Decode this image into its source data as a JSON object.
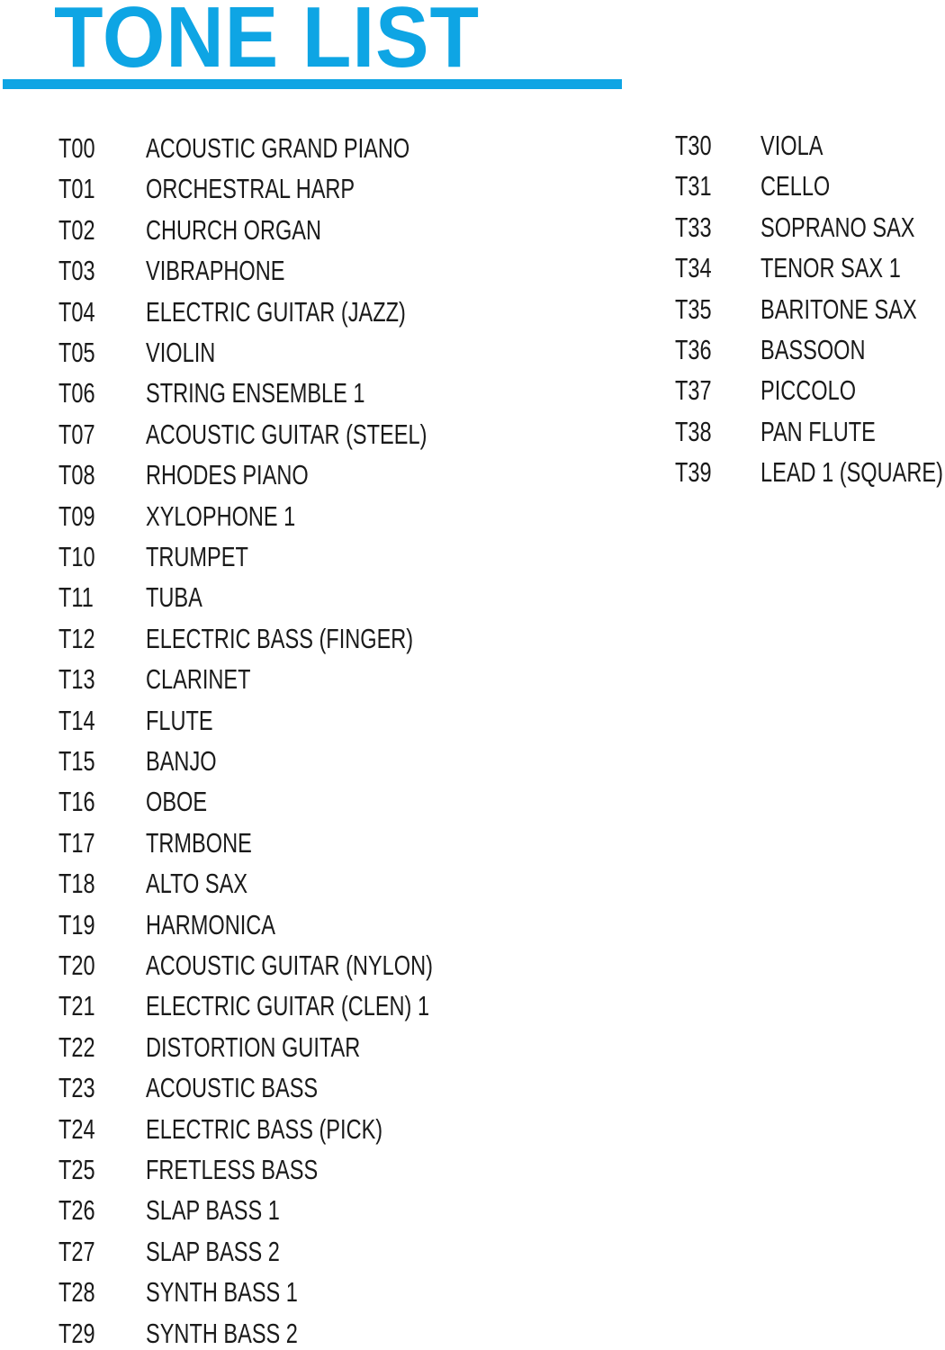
{
  "title": "TONE LIST",
  "columns": [
    {
      "entries": [
        {
          "code": "T00",
          "name": "ACOUSTIC GRAND PIANO"
        },
        {
          "code": "T01",
          "name": "ORCHESTRAL HARP"
        },
        {
          "code": "T02",
          "name": "CHURCH ORGAN"
        },
        {
          "code": "T03",
          "name": "VIBRAPHONE"
        },
        {
          "code": "T04",
          "name": "ELECTRIC GUITAR (JAZZ)"
        },
        {
          "code": "T05",
          "name": "VIOLIN"
        },
        {
          "code": "T06",
          "name": "STRING ENSEMBLE 1"
        },
        {
          "code": "T07",
          "name": "ACOUSTIC GUITAR (STEEL)"
        },
        {
          "code": "T08",
          "name": "RHODES PIANO"
        },
        {
          "code": "T09",
          "name": "XYLOPHONE 1"
        },
        {
          "code": "T10",
          "name": "TRUMPET"
        },
        {
          "code": "T11",
          "name": "TUBA"
        },
        {
          "code": "T12",
          "name": "ELECTRIC BASS (FINGER)"
        },
        {
          "code": "T13",
          "name": "CLARINET"
        },
        {
          "code": "T14",
          "name": "FLUTE"
        },
        {
          "code": "T15",
          "name": "BANJO"
        },
        {
          "code": "T16",
          "name": "OBOE"
        },
        {
          "code": "T17",
          "name": "TRMBONE"
        },
        {
          "code": "T18",
          "name": "ALTO SAX"
        },
        {
          "code": "T19",
          "name": "HARMONICA"
        },
        {
          "code": "T20",
          "name": "ACOUSTIC GUITAR (NYLON)"
        },
        {
          "code": "T21",
          "name": "ELECTRIC GUITAR (CLEN) 1"
        },
        {
          "code": "T22",
          "name": "DISTORTION GUITAR"
        },
        {
          "code": "T23",
          "name": "ACOUSTIC BASS"
        },
        {
          "code": "T24",
          "name": "ELECTRIC BASS (PICK)"
        },
        {
          "code": "T25",
          "name": "FRETLESS BASS"
        },
        {
          "code": "T26",
          "name": "SLAP BASS 1"
        },
        {
          "code": "T27",
          "name": "SLAP BASS 2"
        },
        {
          "code": "T28",
          "name": "SYNTH BASS 1"
        },
        {
          "code": "T29",
          "name": "SYNTH BASS 2"
        }
      ]
    },
    {
      "entries": [
        {
          "code": "T30",
          "name": "VIOLA"
        },
        {
          "code": "T31",
          "name": "CELLO"
        },
        {
          "code": "T33",
          "name": "SOPRANO SAX"
        },
        {
          "code": "T34",
          "name": "TENOR SAX 1"
        },
        {
          "code": "T35",
          "name": "BARITONE SAX"
        },
        {
          "code": "T36",
          "name": "BASSOON"
        },
        {
          "code": "T37",
          "name": "PICCOLO"
        },
        {
          "code": "T38",
          "name": "PAN FLUTE"
        },
        {
          "code": "T39",
          "name": "LEAD 1 (SQUARE)"
        }
      ]
    }
  ]
}
